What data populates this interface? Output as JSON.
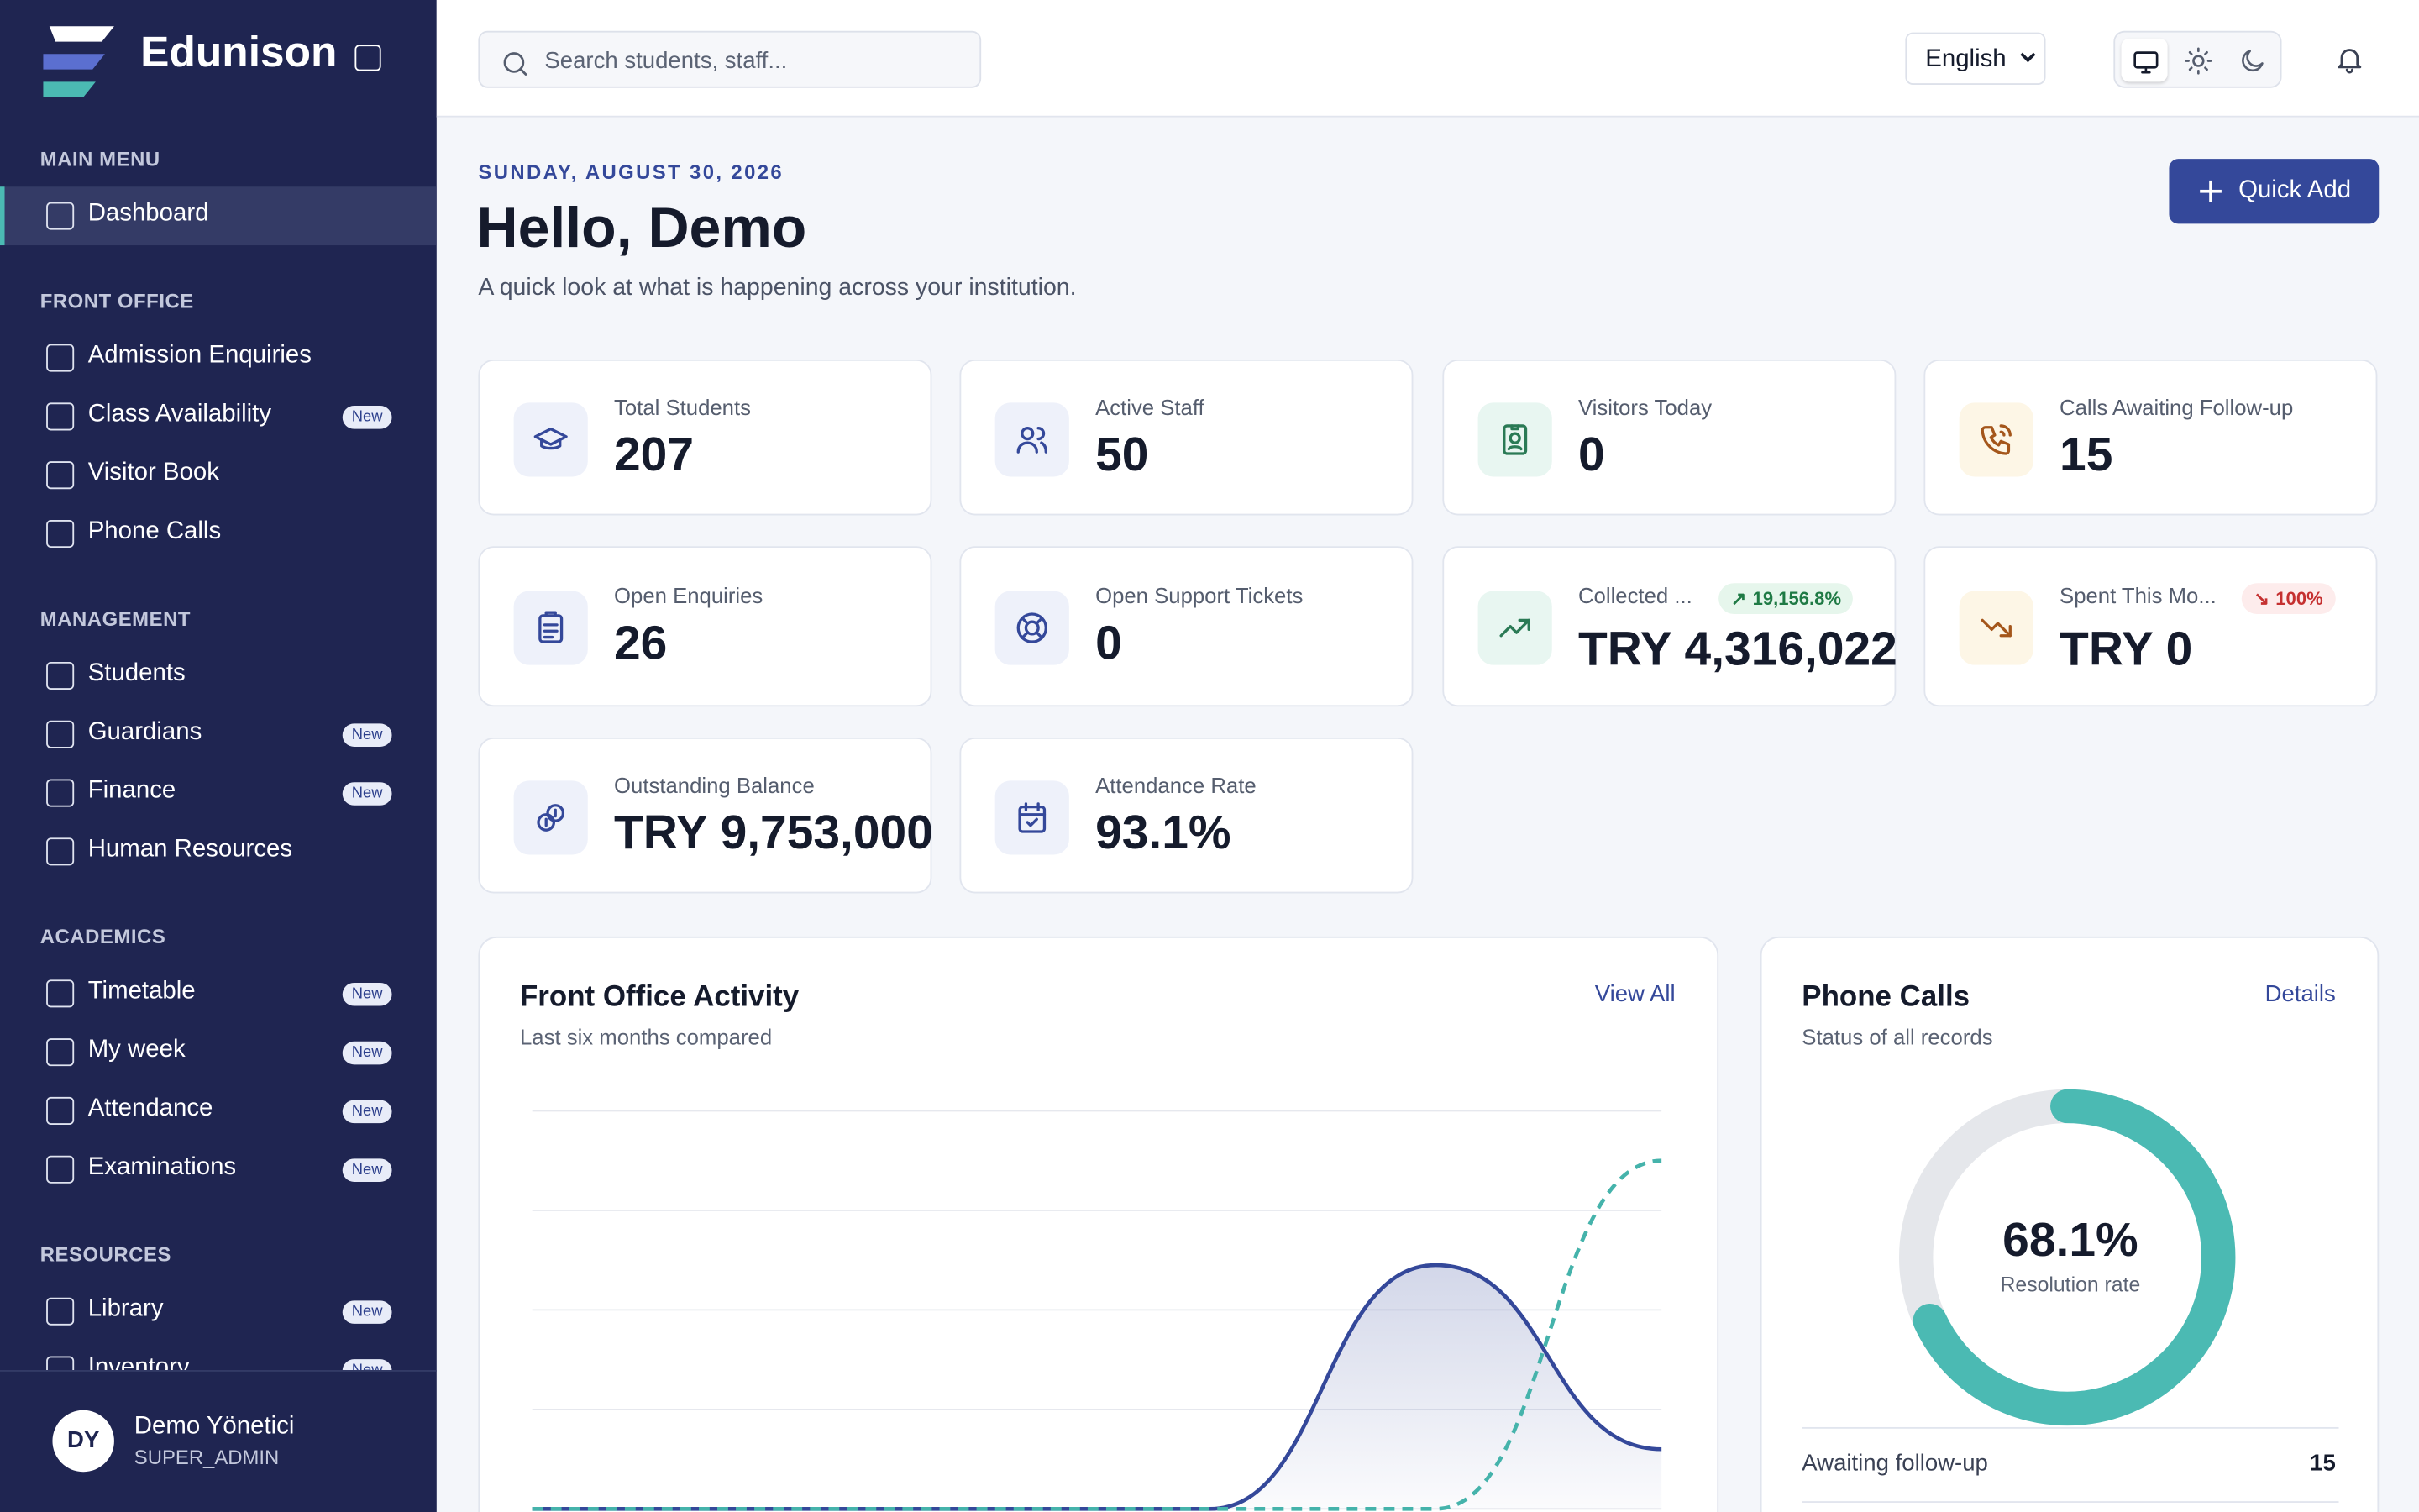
{
  "brand": "Edunison",
  "sidebar": {
    "sections": [
      {
        "title": "MAIN MENU",
        "items": [
          {
            "label": "Dashboard"
          }
        ]
      },
      {
        "title": "FRONT OFFICE",
        "items": [
          {
            "label": "Admission Enquiries"
          },
          {
            "label": "Class Availability",
            "badge": "New"
          },
          {
            "label": "Visitor Book"
          },
          {
            "label": "Phone Calls"
          }
        ]
      },
      {
        "title": "MANAGEMENT",
        "items": [
          {
            "label": "Students"
          },
          {
            "label": "Guardians",
            "badge": "New"
          },
          {
            "label": "Finance",
            "badge": "New"
          },
          {
            "label": "Human Resources"
          }
        ]
      },
      {
        "title": "ACADEMICS",
        "items": [
          {
            "label": "Timetable",
            "badge": "New"
          },
          {
            "label": "My week",
            "badge": "New"
          },
          {
            "label": "Attendance",
            "badge": "New"
          },
          {
            "label": "Examinations",
            "badge": "New"
          }
        ]
      },
      {
        "title": "RESOURCES",
        "items": [
          {
            "label": "Library",
            "badge": "New"
          },
          {
            "label": "Inventory",
            "badge": "New"
          }
        ]
      }
    ],
    "active": "Dashboard",
    "user": {
      "initials": "DY",
      "name": "Demo Yönetici",
      "role": "SUPER_ADMIN"
    }
  },
  "header": {
    "search_placeholder": "Search students, staff...",
    "language": "English"
  },
  "greeting": {
    "date": "SUNDAY, AUGUST 30, 2026",
    "title": "Hello, Demo",
    "subtitle": "A quick look at what is happening across your institution.",
    "action": "Quick Add"
  },
  "stats": [
    {
      "label": "Total Students",
      "value": "207"
    },
    {
      "label": "Active Staff",
      "value": "50"
    },
    {
      "label": "Visitors Today",
      "value": "0"
    },
    {
      "label": "Calls Awaiting Follow-up",
      "value": "15"
    },
    {
      "label": "Open Enquiries",
      "value": "26"
    },
    {
      "label": "Open Support Tickets",
      "value": "0"
    },
    {
      "label": "Collected ...",
      "value": "TRY 4,316,022",
      "badge": "19,156.8%",
      "trend": "up"
    },
    {
      "label": "Spent This Mo...",
      "value": "TRY 0",
      "badge": "100%",
      "trend": "down"
    },
    {
      "label": "Outstanding Balance",
      "value": "TRY 9,753,000"
    },
    {
      "label": "Attendance Rate",
      "value": "93.1%"
    }
  ],
  "front_office": {
    "title": "Front Office Activity",
    "subtitle": "Last six months compared",
    "link": "View All",
    "chart": {
      "type": "line",
      "ylim": [
        0,
        4
      ],
      "yticks": [
        0,
        1,
        2,
        3,
        4
      ],
      "grid": true,
      "series": [
        {
          "color": "#34489a",
          "style": "solid",
          "values": [
            0,
            0,
            0,
            0,
            2.45,
            0.6
          ]
        },
        {
          "color": "#45b3ab",
          "style": "dashed",
          "values": [
            0,
            0,
            0,
            0,
            0,
            3.5
          ]
        }
      ]
    }
  },
  "phone_calls": {
    "title": "Phone Calls",
    "subtitle": "Status of all records",
    "link": "Details",
    "resolution": {
      "value": 68.1,
      "label": "68.1%",
      "color": "#4bbab3"
    },
    "caption": "Resolution rate",
    "rows": [
      {
        "label": "Awaiting follow-up",
        "value": "15"
      }
    ]
  }
}
